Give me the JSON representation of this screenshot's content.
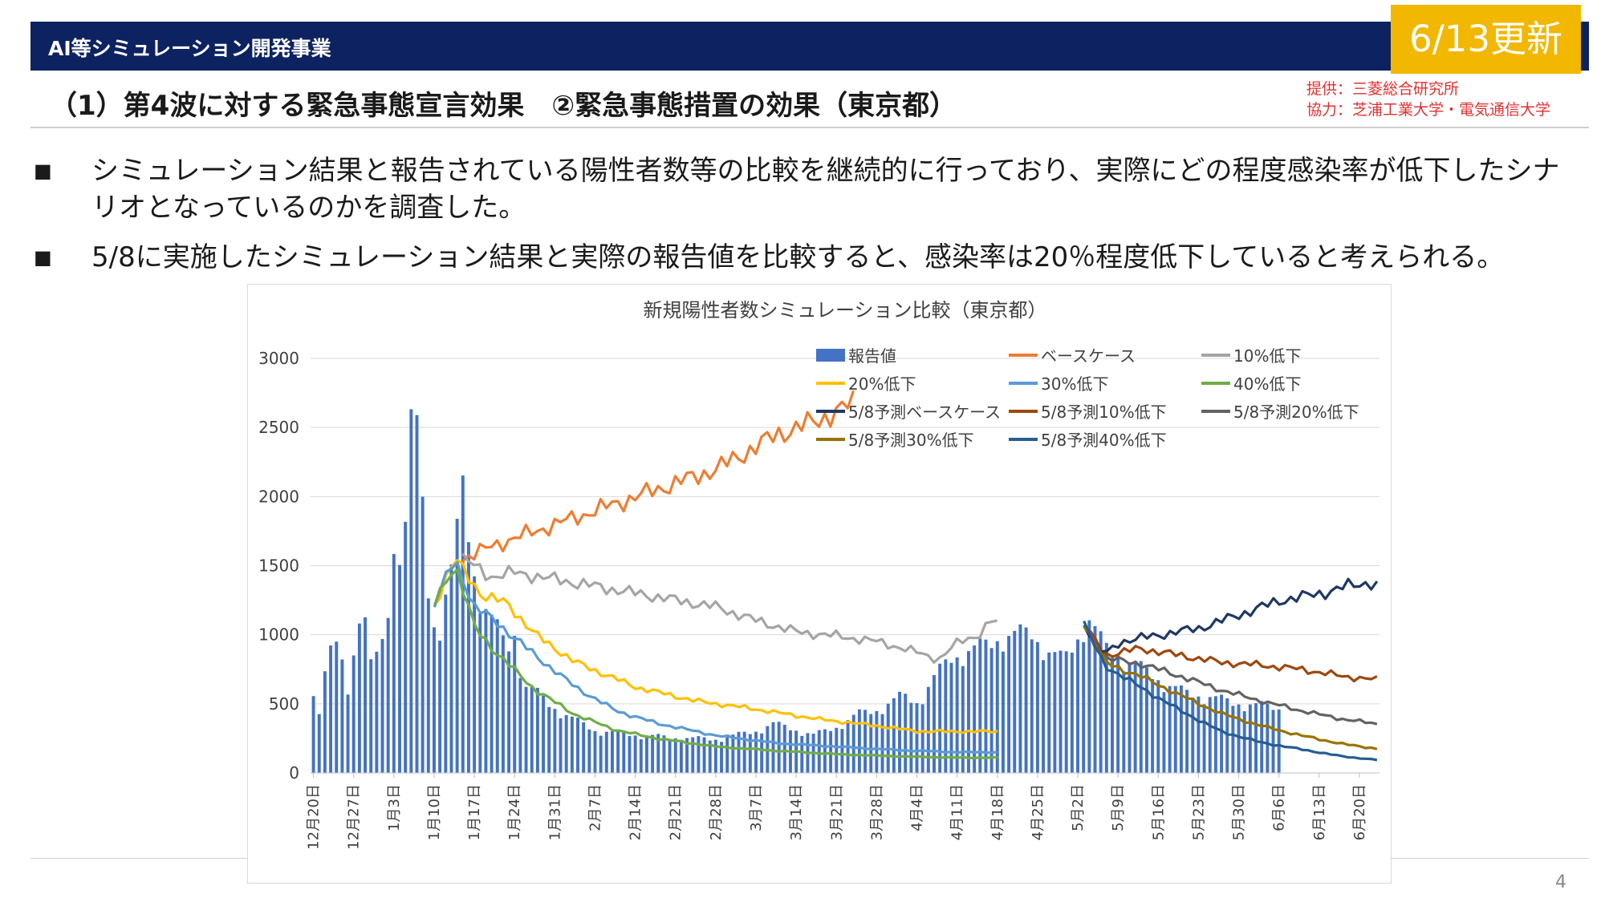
{
  "header": {
    "banner_title": "AI等シミュレーション開発事業",
    "update_badge": "6/13更新",
    "heading": "（1）第4波に対する緊急事態宣言効果　②緊急事態措置の効果（東京都）",
    "credit_provider": "提供：三菱総合研究所",
    "credit_cooperation": "協力：芝浦工業大学・電気通信大学",
    "banner_color": "#0d2260",
    "badge_color": "#f2b700"
  },
  "bullets": [
    {
      "marker": "■",
      "text": "シミュレーション結果と報告されている陽性者数等の比較を継続的に行っており、実際にどの程度感染率が低下したシナリオとなっているのかを調査した。"
    },
    {
      "marker": "■",
      "text": "5/8に実施したシミュレーション結果と実際の報告値を比較すると、感染率は20％程度低下していると考えられる。"
    }
  ],
  "page_number": "4",
  "chart_data": {
    "type": "bar",
    "title": "新規陽性者数シミュレーション比較（東京都）",
    "ylim": [
      0,
      3000
    ],
    "yticks": [
      0,
      500,
      1000,
      1500,
      2000,
      2500,
      3000
    ],
    "grid": true,
    "legend_position": "top-right",
    "x_start": "12月20日",
    "x_end": "6月23日",
    "xtick_labels": [
      "12月20日",
      "12月27日",
      "1月3日",
      "1月10日",
      "1月17日",
      "1月24日",
      "1月31日",
      "2月7日",
      "2月14日",
      "2月21日",
      "2月28日",
      "3月7日",
      "3月14日",
      "3月21日",
      "3月28日",
      "4月4日",
      "4月11日",
      "4月18日",
      "4月25日",
      "5月2日",
      "5月9日",
      "5月16日",
      "5月23日",
      "5月30日",
      "6月6日",
      "6月13日",
      "6月20日"
    ],
    "reported": {
      "name": "報告値",
      "color": "#4472c4",
      "anchors": [
        [
          0,
          556
        ],
        [
          1,
          400
        ],
        [
          2,
          560
        ],
        [
          3,
          750
        ],
        [
          4,
          880
        ],
        [
          6,
          870
        ],
        [
          8,
          700
        ],
        [
          9,
          490
        ],
        [
          10,
          860
        ],
        [
          12,
          1330
        ],
        [
          14,
          780
        ],
        [
          16,
          810
        ],
        [
          18,
          1000
        ],
        [
          20,
          1600
        ],
        [
          21,
          1620
        ],
        [
          23,
          1800
        ],
        [
          24,
          2520
        ],
        [
          25,
          2460
        ],
        [
          26,
          2330
        ],
        [
          28,
          1500
        ],
        [
          29,
          1100
        ],
        [
          31,
          1000
        ],
        [
          33,
          1300
        ],
        [
          35,
          1530
        ],
        [
          37,
          2040
        ],
        [
          38,
          1820
        ],
        [
          40,
          1400
        ],
        [
          42,
          1200
        ],
        [
          44,
          1100
        ],
        [
          46,
          1000
        ],
        [
          48,
          880
        ],
        [
          50,
          1000
        ],
        [
          52,
          620
        ],
        [
          55,
          580
        ],
        [
          58,
          500
        ],
        [
          62,
          420
        ],
        [
          66,
          360
        ],
        [
          70,
          300
        ],
        [
          80,
          270
        ],
        [
          90,
          250
        ],
        [
          100,
          240
        ],
        [
          110,
          300
        ],
        [
          114,
          350
        ],
        [
          118,
          320
        ],
        [
          124,
          270
        ],
        [
          130,
          330
        ],
        [
          135,
          420
        ],
        [
          140,
          450
        ],
        [
          146,
          550
        ],
        [
          150,
          500
        ],
        [
          154,
          680
        ],
        [
          158,
          820
        ],
        [
          162,
          860
        ],
        [
          166,
          900
        ],
        [
          170,
          960
        ],
        [
          174,
          980
        ],
        [
          178,
          1000
        ],
        [
          182,
          860
        ],
        [
          186,
          800
        ],
        [
          190,
          990
        ],
        [
          192,
          1100
        ],
        [
          196,
          900
        ],
        [
          200,
          820
        ],
        [
          204,
          760
        ],
        [
          208,
          700
        ],
        [
          212,
          620
        ],
        [
          216,
          570
        ],
        [
          222,
          540
        ],
        [
          228,
          500
        ],
        [
          234,
          480
        ],
        [
          238,
          470
        ],
        [
          240,
          455
        ]
      ],
      "weekly_amplitude": 0.2,
      "last_index": 240
    },
    "series": [
      {
        "name": "ベースケース",
        "color": "#ed7d31",
        "anchors": [
          [
            37,
            1550
          ],
          [
            45,
            1650
          ],
          [
            60,
            1800
          ],
          [
            80,
            2000
          ],
          [
            100,
            2200
          ],
          [
            115,
            2450
          ],
          [
            125,
            2550
          ],
          [
            132,
            2650
          ],
          [
            135,
            2700
          ]
        ]
      },
      {
        "name": "10%低下",
        "color": "#a5a5a5",
        "anchors": [
          [
            37,
            1550
          ],
          [
            44,
            1420
          ],
          [
            50,
            1450
          ],
          [
            60,
            1400
          ],
          [
            80,
            1300
          ],
          [
            100,
            1200
          ],
          [
            110,
            1100
          ],
          [
            120,
            1020
          ],
          [
            130,
            990
          ],
          [
            140,
            950
          ],
          [
            150,
            870
          ],
          [
            155,
            820
          ],
          [
            160,
            950
          ],
          [
            165,
            1000
          ],
          [
            168,
            1100
          ],
          [
            170,
            1080
          ]
        ]
      },
      {
        "name": "20%低下",
        "color": "#ffc000",
        "anchors": [
          [
            30,
            1220
          ],
          [
            35,
            1550
          ],
          [
            42,
            1280
          ],
          [
            48,
            1230
          ],
          [
            55,
            1000
          ],
          [
            65,
            800
          ],
          [
            80,
            620
          ],
          [
            95,
            520
          ],
          [
            110,
            460
          ],
          [
            125,
            390
          ],
          [
            140,
            340
          ],
          [
            150,
            300
          ],
          [
            160,
            300
          ],
          [
            170,
            300
          ]
        ]
      },
      {
        "name": "30%低下",
        "color": "#5b9bd5",
        "anchors": [
          [
            30,
            1220
          ],
          [
            35,
            1550
          ],
          [
            40,
            1200
          ],
          [
            45,
            1100
          ],
          [
            55,
            850
          ],
          [
            65,
            620
          ],
          [
            75,
            450
          ],
          [
            85,
            360
          ],
          [
            100,
            270
          ],
          [
            115,
            215
          ],
          [
            130,
            190
          ],
          [
            145,
            165
          ],
          [
            160,
            150
          ],
          [
            170,
            150
          ]
        ]
      },
      {
        "name": "40%低下",
        "color": "#70ad47",
        "anchors": [
          [
            30,
            1220
          ],
          [
            35,
            1520
          ],
          [
            40,
            1050
          ],
          [
            45,
            880
          ],
          [
            55,
            600
          ],
          [
            65,
            420
          ],
          [
            75,
            310
          ],
          [
            85,
            250
          ],
          [
            100,
            190
          ],
          [
            115,
            160
          ],
          [
            130,
            135
          ],
          [
            145,
            120
          ],
          [
            160,
            110
          ],
          [
            170,
            110
          ]
        ]
      },
      {
        "name": "5/8予測ベースケース",
        "color": "#1f3864",
        "anchors": [
          [
            191,
            1080
          ],
          [
            196,
            850
          ],
          [
            200,
            950
          ],
          [
            210,
            1000
          ],
          [
            220,
            1050
          ],
          [
            230,
            1150
          ],
          [
            240,
            1250
          ],
          [
            250,
            1300
          ],
          [
            256,
            1350
          ],
          [
            262,
            1380
          ],
          [
            265,
            1340
          ]
        ]
      },
      {
        "name": "5/8予測10%低下",
        "color": "#9e480e",
        "anchors": [
          [
            191,
            1080
          ],
          [
            196,
            850
          ],
          [
            205,
            900
          ],
          [
            215,
            850
          ],
          [
            225,
            800
          ],
          [
            235,
            780
          ],
          [
            245,
            750
          ],
          [
            255,
            700
          ],
          [
            265,
            670
          ]
        ]
      },
      {
        "name": "5/8予測20%低下",
        "color": "#636363",
        "anchors": [
          [
            191,
            1080
          ],
          [
            196,
            830
          ],
          [
            205,
            790
          ],
          [
            215,
            700
          ],
          [
            225,
            600
          ],
          [
            235,
            520
          ],
          [
            245,
            450
          ],
          [
            255,
            390
          ],
          [
            265,
            350
          ]
        ]
      },
      {
        "name": "5/8予測30%低下",
        "color": "#997300",
        "anchors": [
          [
            191,
            1080
          ],
          [
            196,
            800
          ],
          [
            205,
            700
          ],
          [
            215,
            560
          ],
          [
            225,
            430
          ],
          [
            235,
            340
          ],
          [
            245,
            270
          ],
          [
            255,
            210
          ],
          [
            265,
            170
          ]
        ]
      },
      {
        "name": "5/8予測40%低下",
        "color": "#255e91",
        "anchors": [
          [
            191,
            1080
          ],
          [
            196,
            780
          ],
          [
            205,
            620
          ],
          [
            215,
            450
          ],
          [
            225,
            300
          ],
          [
            235,
            220
          ],
          [
            245,
            170
          ],
          [
            255,
            120
          ],
          [
            265,
            90
          ]
        ]
      }
    ]
  }
}
